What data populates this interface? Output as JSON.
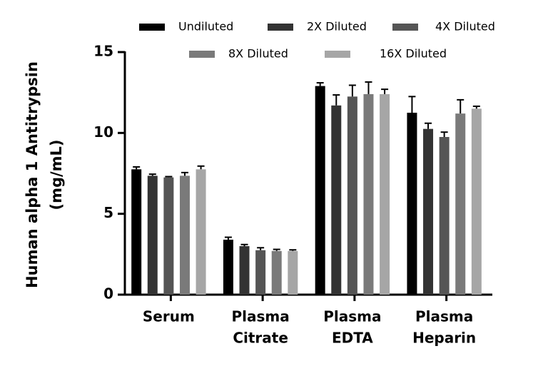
{
  "chart_data": {
    "type": "bar",
    "ylabel": [
      "Human alpha 1 Antitrypsin",
      "(mg/mL)"
    ],
    "categories": [
      [
        "Serum"
      ],
      [
        "Plasma",
        "Citrate"
      ],
      [
        "Plasma",
        "EDTA"
      ],
      [
        "Plasma",
        "Heparin"
      ]
    ],
    "series": [
      {
        "name": "Undiluted",
        "color": "#000000",
        "values": [
          7.75,
          3.4,
          12.9,
          11.25
        ],
        "errors": [
          0.15,
          0.15,
          0.2,
          1.0
        ]
      },
      {
        "name": "2X Diluted",
        "color": "#333333",
        "values": [
          7.35,
          3.0,
          11.7,
          10.25
        ],
        "errors": [
          0.1,
          0.1,
          0.65,
          0.35
        ]
      },
      {
        "name": "4X Diluted",
        "color": "#555555",
        "values": [
          7.25,
          2.75,
          12.25,
          9.75
        ],
        "errors": [
          0.05,
          0.15,
          0.7,
          0.3
        ]
      },
      {
        "name": "8X Diluted",
        "color": "#7a7a7a",
        "values": [
          7.35,
          2.7,
          12.4,
          11.2
        ],
        "errors": [
          0.2,
          0.1,
          0.75,
          0.85
        ]
      },
      {
        "name": "16X Diluted",
        "color": "#a6a6a6",
        "values": [
          7.75,
          2.7,
          12.4,
          11.5
        ],
        "errors": [
          0.2,
          0.07,
          0.3,
          0.15
        ]
      }
    ],
    "ylim": [
      0,
      15
    ],
    "yticks": [
      0,
      5,
      10,
      15
    ]
  }
}
